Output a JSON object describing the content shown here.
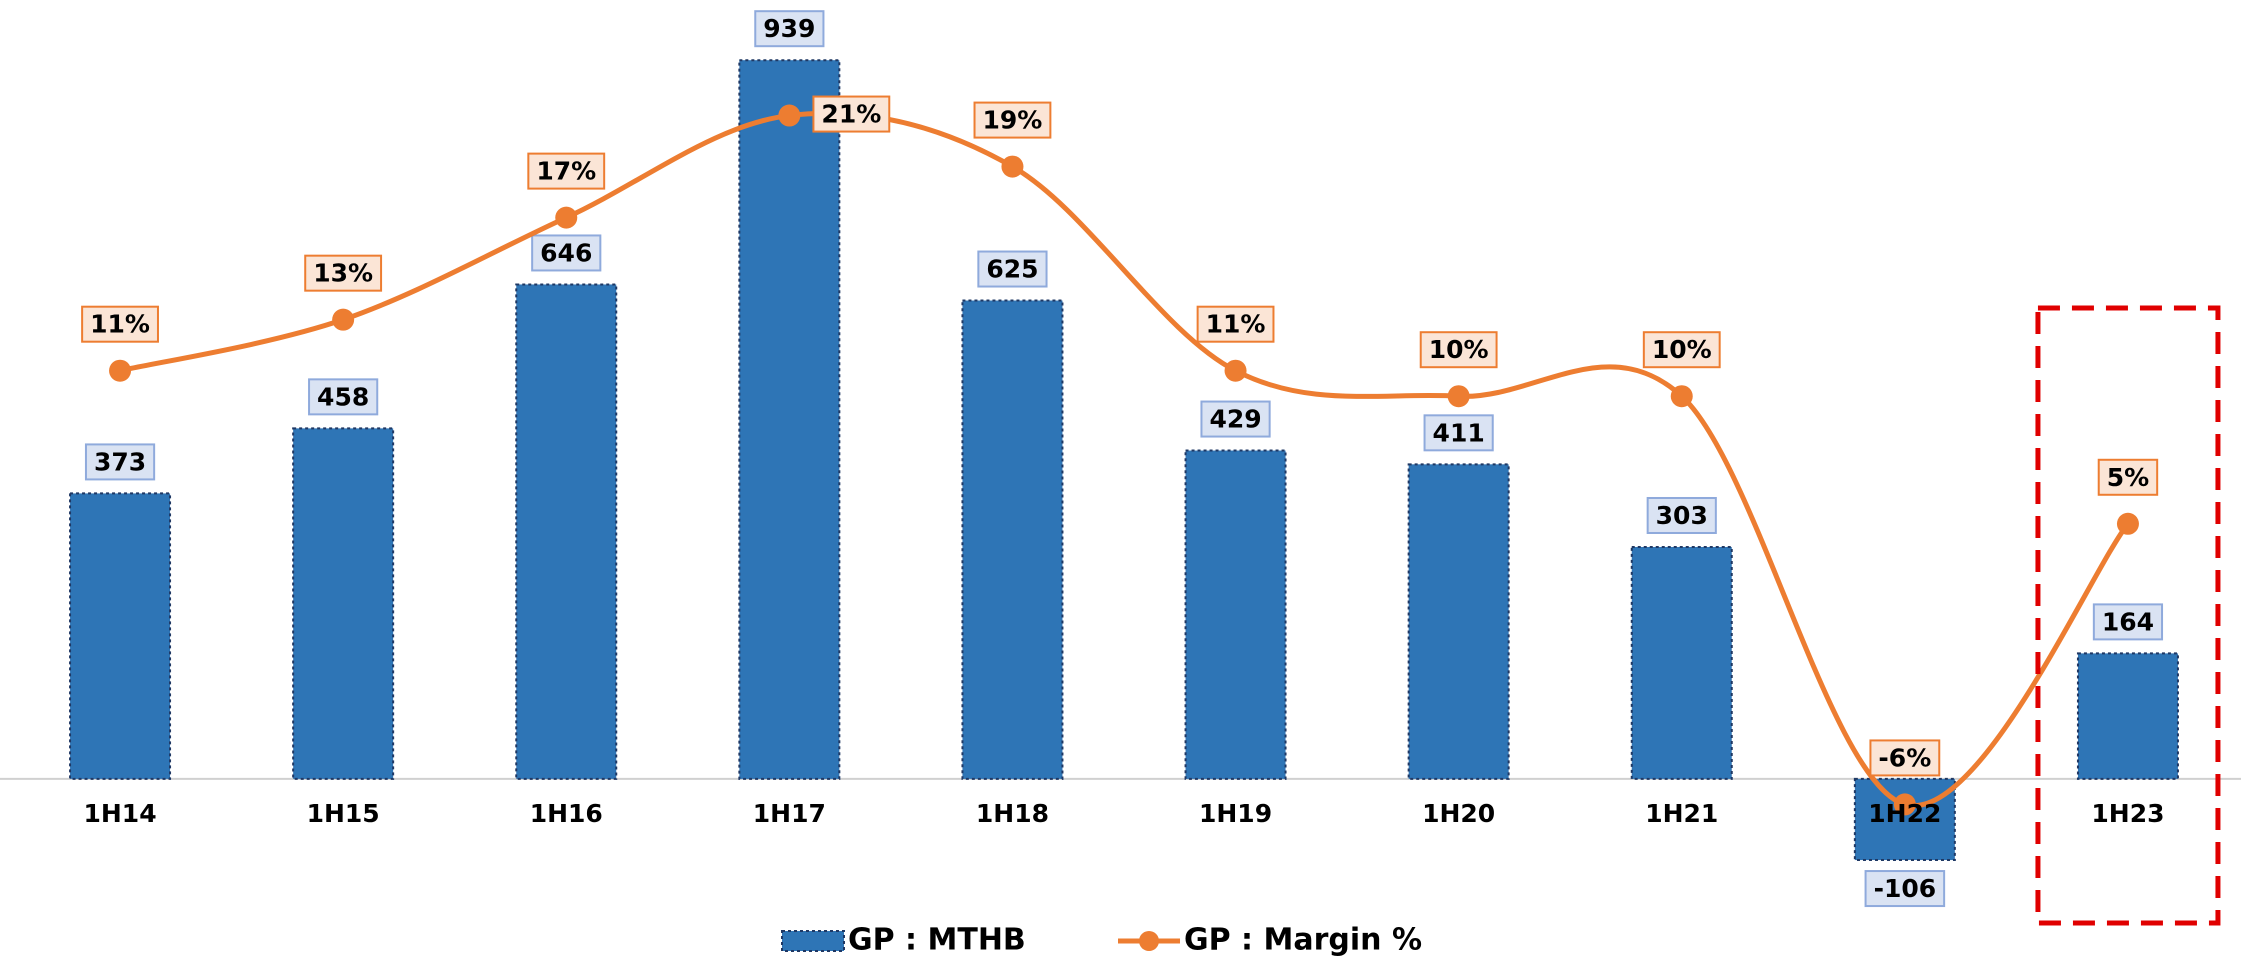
{
  "chart_data": {
    "type": "bar_line",
    "categories": [
      "1H14",
      "1H15",
      "1H16",
      "1H17",
      "1H18",
      "1H19",
      "1H20",
      "1H21",
      "1H22",
      "1H23"
    ],
    "series": [
      {
        "name": "GP : MTHB",
        "type": "bar",
        "color": "#2e75b6",
        "values": [
          373,
          458,
          646,
          939,
          625,
          429,
          411,
          303,
          -106,
          164
        ]
      },
      {
        "name": "GP : Margin %",
        "type": "line",
        "axis": "y2",
        "color": "#ed7d31",
        "values": [
          11,
          13,
          17,
          21,
          19,
          11,
          10,
          10,
          -6,
          5
        ],
        "value_labels": [
          "11%",
          "13%",
          "17%",
          "21%",
          "19%",
          "11%",
          "10%",
          "10%",
          "-6%",
          "5%"
        ]
      }
    ],
    "ylim": [
      -200,
      1000
    ],
    "y2lim": [
      -11,
      25
    ],
    "grid": false,
    "legend": "bottom"
  }
}
